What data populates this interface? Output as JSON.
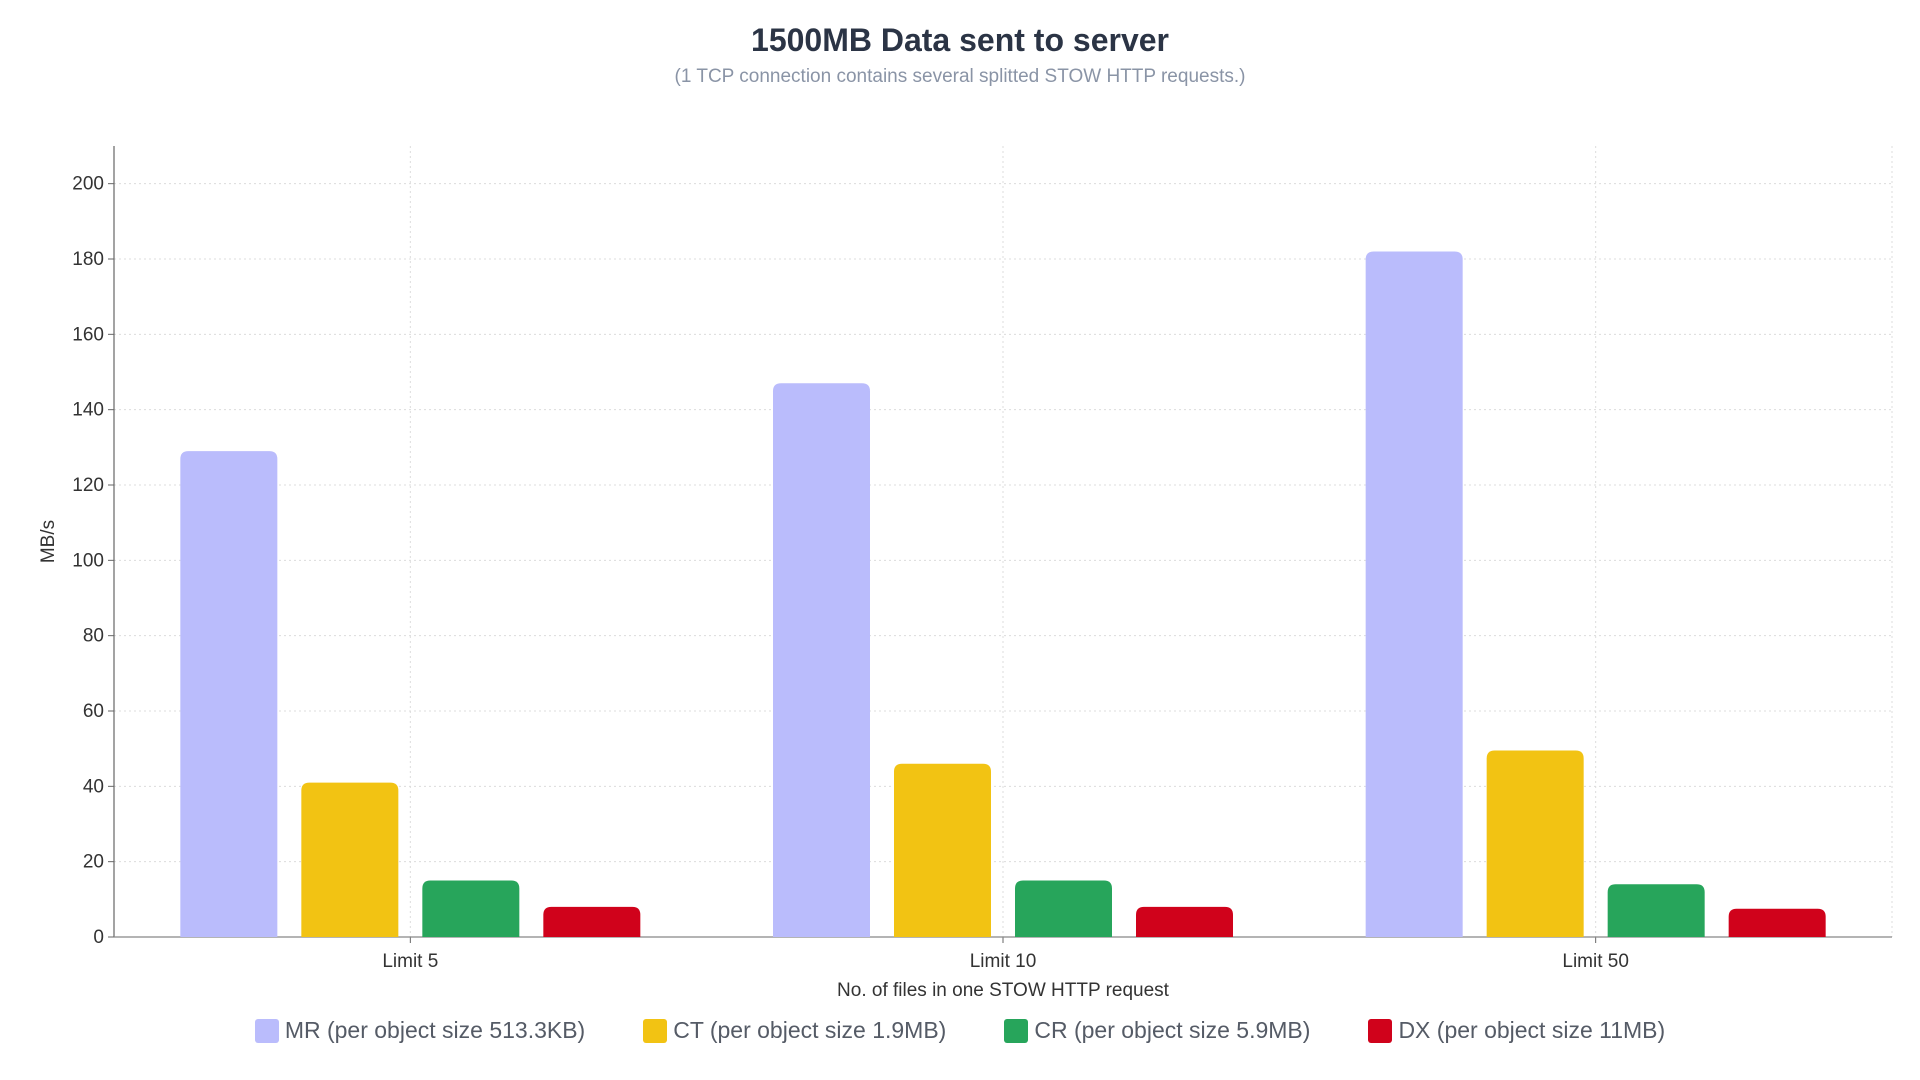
{
  "chart_data": {
    "type": "bar",
    "title": "1500MB Data sent to server",
    "subtitle": "(1 TCP connection contains several splitted STOW HTTP requests.)",
    "xlabel": "No. of files in one STOW HTTP request",
    "ylabel": "MB/s",
    "categories": [
      "Limit 5",
      "Limit 10",
      "Limit 50"
    ],
    "ylim": [
      0,
      210
    ],
    "yticks": [
      0,
      20,
      40,
      60,
      80,
      100,
      120,
      140,
      160,
      180,
      200
    ],
    "grid": true,
    "legend_position": "bottom",
    "series": [
      {
        "name": "MR (per object size 513.3KB)",
        "color": "#babcfc",
        "values": [
          129,
          147,
          182
        ]
      },
      {
        "name": "CT (per object size 1.9MB)",
        "color": "#f2c313",
        "values": [
          41,
          46,
          49.5
        ]
      },
      {
        "name": "CR (per object size 5.9MB)",
        "color": "#27a55b",
        "values": [
          15,
          15,
          14
        ]
      },
      {
        "name": "DX (per object size 11MB)",
        "color": "#d0021b",
        "values": [
          8,
          8,
          7.5
        ]
      }
    ]
  }
}
